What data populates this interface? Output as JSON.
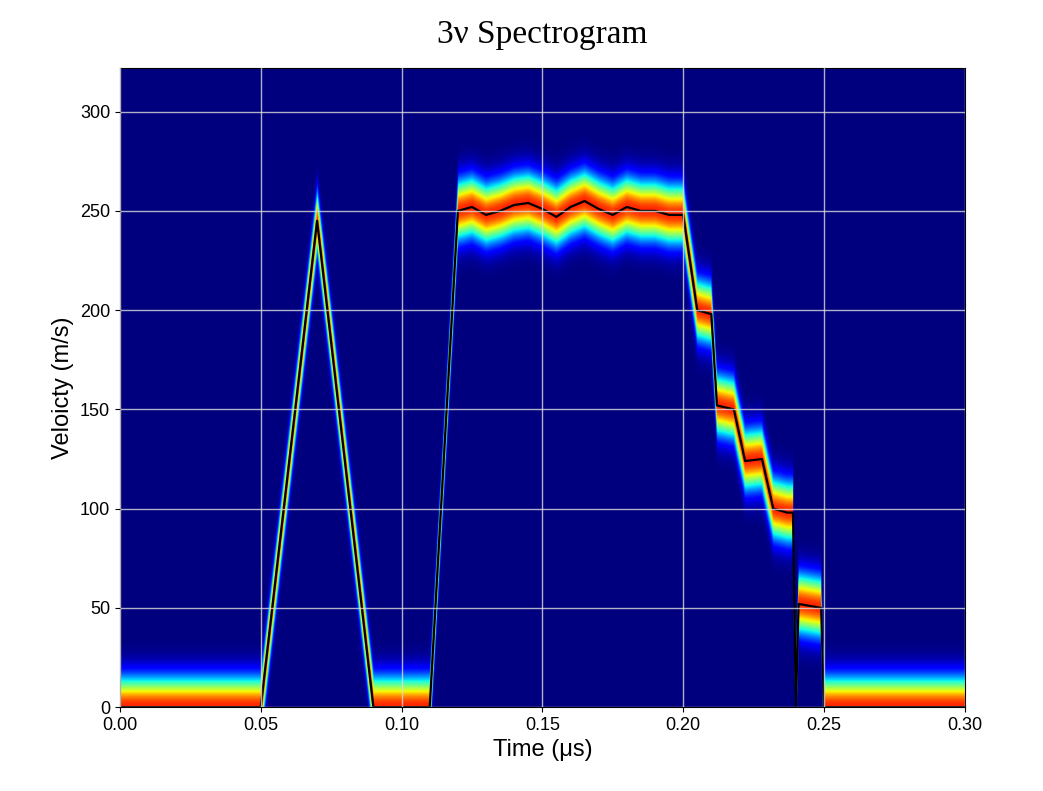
{
  "chart_data": {
    "type": "spectrogram",
    "title": "3ν Spectrogram",
    "x_label": "Time (μs)",
    "y_label": "Veloicty (m/s)",
    "x": [
      0.0,
      0.05,
      0.07,
      0.09,
      0.11,
      0.12,
      0.125,
      0.13,
      0.135,
      0.14,
      0.145,
      0.15,
      0.155,
      0.16,
      0.165,
      0.17,
      0.175,
      0.18,
      0.185,
      0.19,
      0.195,
      0.2,
      0.205,
      0.21,
      0.212,
      0.218,
      0.222,
      0.228,
      0.232,
      0.237,
      0.239,
      0.24,
      0.241,
      0.249,
      0.25,
      0.3
    ],
    "values": [
      0,
      0,
      245,
      0,
      0,
      250,
      252,
      248,
      250,
      253,
      254,
      251,
      247,
      252,
      255,
      251,
      248,
      252,
      250,
      250,
      248,
      248,
      200,
      198,
      152,
      150,
      124,
      125,
      100,
      98,
      98,
      0,
      52,
      50,
      0,
      0
    ],
    "color": "#000000",
    "xlim": [
      0.0,
      0.3
    ],
    "ylim": [
      0,
      322
    ],
    "xticks": [
      {
        "value": 0.0,
        "label": "0.00"
      },
      {
        "value": 0.05,
        "label": "0.05"
      },
      {
        "value": 0.1,
        "label": "0.10"
      },
      {
        "value": 0.15,
        "label": "0.15"
      },
      {
        "value": 0.2,
        "label": "0.20"
      },
      {
        "value": 0.25,
        "label": "0.25"
      },
      {
        "value": 0.3,
        "label": "0.30"
      }
    ],
    "yticks": [
      0,
      50,
      100,
      150,
      200,
      250,
      300
    ],
    "grid": true
  }
}
